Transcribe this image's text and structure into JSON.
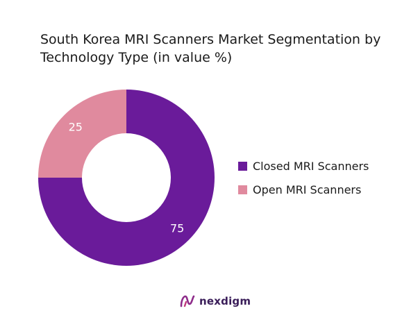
{
  "chart_data": {
    "type": "pie",
    "title": "South Korea MRI Scanners Market Segmentation by Technology Type (in value %)",
    "categories": [
      "Closed MRI Scanners",
      "Open MRI Scanners"
    ],
    "values": [
      75,
      25
    ],
    "colors": [
      "#6a1b9a",
      "#e08a9e"
    ],
    "donut": true,
    "legend_position": "right"
  },
  "brand": {
    "name": "nexdigm",
    "icon": "nexdigm-logo-icon"
  }
}
